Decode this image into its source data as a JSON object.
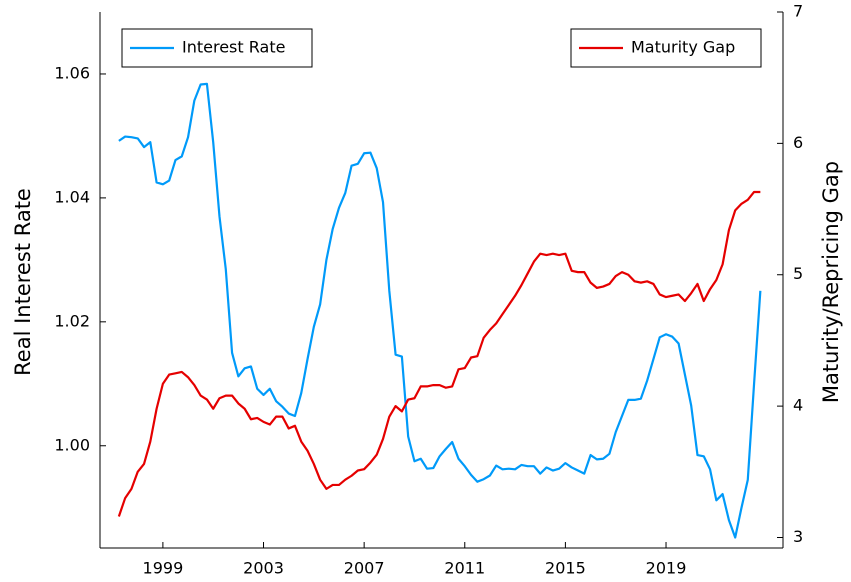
{
  "chart_data": {
    "type": "line",
    "x": [
      1997.25,
      1997.5,
      1997.75,
      1998,
      1998.25,
      1998.5,
      1998.75,
      1999,
      1999.25,
      1999.5,
      1999.75,
      2000,
      2000.25,
      2000.5,
      2000.75,
      2001,
      2001.25,
      2001.5,
      2001.75,
      2002,
      2002.25,
      2002.5,
      2002.75,
      2003,
      2003.25,
      2003.5,
      2003.75,
      2004,
      2004.25,
      2004.5,
      2004.75,
      2005,
      2005.25,
      2005.5,
      2005.75,
      2006,
      2006.25,
      2006.5,
      2006.75,
      2007,
      2007.25,
      2007.5,
      2007.75,
      2008,
      2008.25,
      2008.5,
      2008.75,
      2009,
      2009.25,
      2009.5,
      2009.75,
      2010,
      2010.25,
      2010.5,
      2010.75,
      2011,
      2011.25,
      2011.5,
      2011.75,
      2012,
      2012.25,
      2012.5,
      2012.75,
      2013,
      2013.25,
      2013.5,
      2013.75,
      2014,
      2014.25,
      2014.5,
      2014.75,
      2015,
      2015.25,
      2015.5,
      2015.75,
      2016,
      2016.25,
      2016.5,
      2016.75,
      2017,
      2017.25,
      2017.5,
      2017.75,
      2018,
      2018.25,
      2018.5,
      2018.75,
      2019,
      2019.25,
      2019.5,
      2019.75,
      2020,
      2020.25,
      2020.5,
      2020.75,
      2021,
      2021.25,
      2021.5,
      2021.75,
      2022,
      2022.25,
      2022.5,
      2022.75
    ],
    "series": [
      {
        "name": "Interest Rate",
        "color": "#009af9",
        "axis": "y",
        "legend": "top-left",
        "values": [
          1.0492,
          1.0499,
          1.0498,
          1.0496,
          1.0482,
          1.049,
          1.0425,
          1.0422,
          1.0428,
          1.0461,
          1.0467,
          1.0498,
          1.0557,
          1.0583,
          1.0584,
          1.049,
          1.037,
          1.0285,
          1.015,
          1.0112,
          1.0125,
          1.0128,
          1.0092,
          1.0082,
          1.0092,
          1.0072,
          1.0063,
          1.0052,
          1.0048,
          1.0085,
          1.014,
          1.0192,
          1.0228,
          1.03,
          1.035,
          1.0384,
          1.0408,
          1.0452,
          1.0455,
          1.0472,
          1.0473,
          1.0448,
          1.0393,
          1.025,
          1.0147,
          1.0144,
          1.0015,
          0.9975,
          0.9979,
          0.9963,
          0.9964,
          0.9983,
          0.9995,
          1.0006,
          0.9979,
          0.9967,
          0.9953,
          0.9942,
          0.9946,
          0.9952,
          0.9968,
          0.9962,
          0.9963,
          0.9962,
          0.9969,
          0.9967,
          0.9967,
          0.9955,
          0.9965,
          0.996,
          0.9963,
          0.9972,
          0.9965,
          0.996,
          0.9955,
          0.9985,
          0.9978,
          0.9979,
          0.9987,
          1.0022,
          1.0048,
          1.0074,
          1.0074,
          1.0076,
          1.0105,
          1.014,
          1.0175,
          1.018,
          1.0176,
          1.0165,
          1.0115,
          1.0065,
          0.9985,
          0.9983,
          0.9962,
          0.9912,
          0.9922,
          0.988,
          0.9852,
          0.99,
          0.9945,
          1.01,
          1.025
        ]
      },
      {
        "name": "Maturity Gap",
        "color": "#e50000",
        "axis": "y2",
        "legend": "top-right",
        "values": [
          3.16,
          3.3,
          3.37,
          3.5,
          3.56,
          3.73,
          3.98,
          4.17,
          4.24,
          4.25,
          4.26,
          4.22,
          4.16,
          4.08,
          4.05,
          3.98,
          4.06,
          4.08,
          4.08,
          4.02,
          3.98,
          3.9,
          3.91,
          3.88,
          3.86,
          3.92,
          3.92,
          3.83,
          3.85,
          3.73,
          3.66,
          3.56,
          3.44,
          3.37,
          3.4,
          3.4,
          3.44,
          3.47,
          3.51,
          3.52,
          3.57,
          3.63,
          3.75,
          3.92,
          4.0,
          3.96,
          4.05,
          4.06,
          4.15,
          4.15,
          4.16,
          4.16,
          4.14,
          4.15,
          4.28,
          4.29,
          4.37,
          4.38,
          4.52,
          4.58,
          4.63,
          4.7,
          4.77,
          4.84,
          4.92,
          5.01,
          5.1,
          5.16,
          5.15,
          5.16,
          5.15,
          5.16,
          5.03,
          5.02,
          5.02,
          4.94,
          4.9,
          4.91,
          4.93,
          4.99,
          5.02,
          5.0,
          4.95,
          4.94,
          4.95,
          4.93,
          4.85,
          4.83,
          4.84,
          4.85,
          4.8,
          4.86,
          4.93,
          4.8,
          4.89,
          4.96,
          5.08,
          5.34,
          5.49,
          5.54,
          5.57,
          5.63,
          5.63
        ]
      }
    ],
    "ylabel": "Real Interest Rate",
    "y2label": "Maturity/Repricing Gap",
    "xlim": [
      1996.5,
      2023.65
    ],
    "xticks": [
      1999,
      2003,
      2007,
      2011,
      2015,
      2019
    ],
    "ylim": [
      0.9835,
      1.07
    ],
    "yticks": [
      {
        "value": 1,
        "label": "1.00"
      },
      1.02,
      1.04,
      1.06
    ],
    "y2lim": [
      2.92,
      7
    ],
    "y2ticks": [
      3,
      4,
      5,
      6,
      7
    ],
    "grid": false
  }
}
